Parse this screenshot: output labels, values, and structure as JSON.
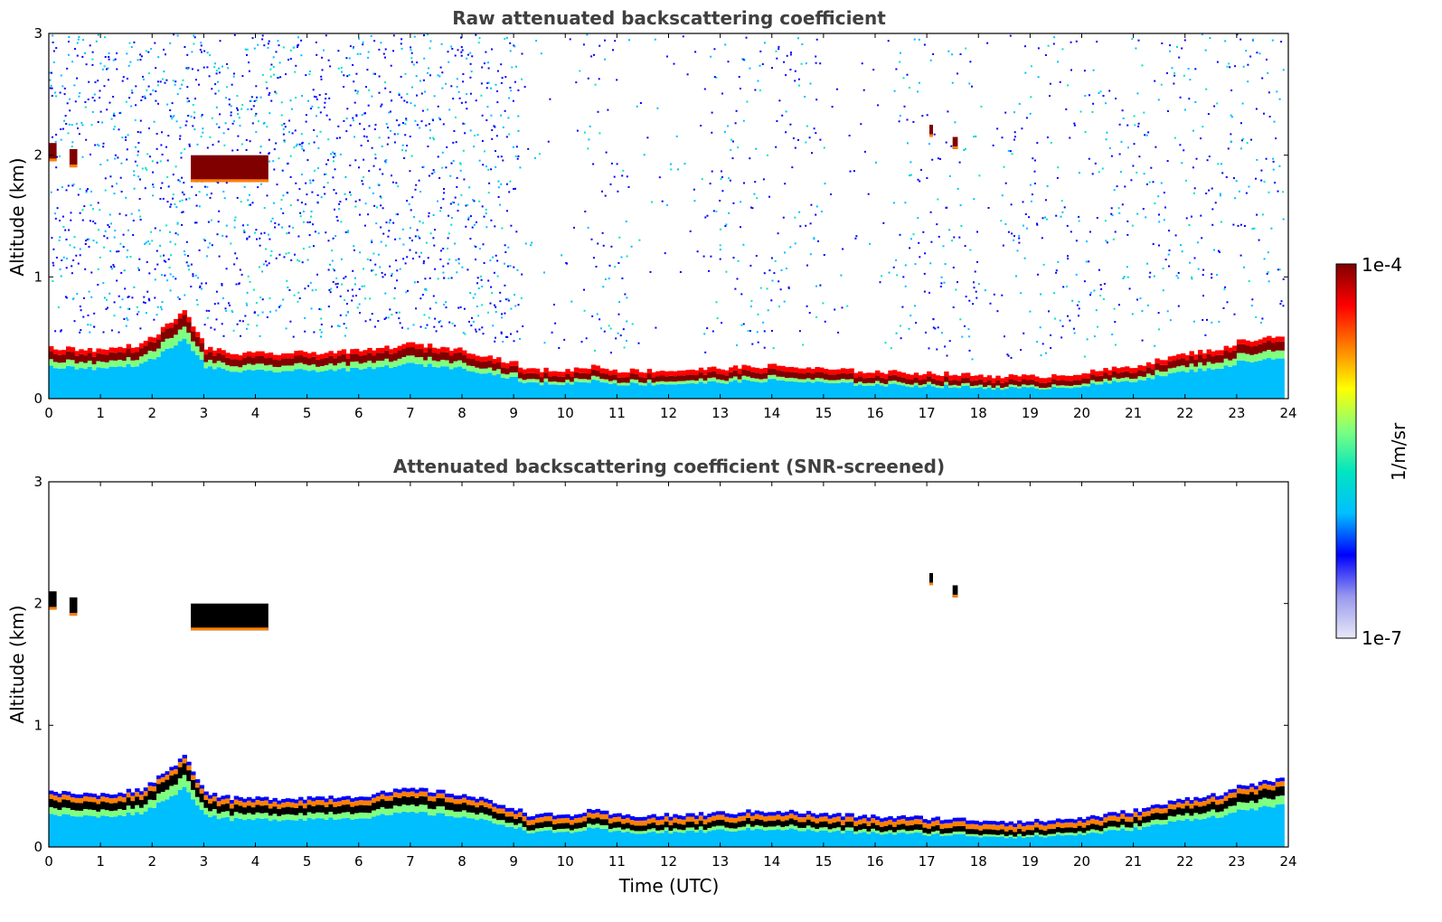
{
  "chart_data": [
    {
      "type": "heatmap",
      "title": "Raw attenuated backscattering coefficient",
      "xlabel": "",
      "ylabel": "Altitude (km)",
      "xlim": [
        0,
        24
      ],
      "ylim": [
        0,
        3
      ],
      "xticks": [
        "0",
        "1",
        "2",
        "3",
        "4",
        "5",
        "6",
        "7",
        "8",
        "9",
        "10",
        "11",
        "12",
        "13",
        "14",
        "15",
        "16",
        "17",
        "18",
        "19",
        "20",
        "21",
        "22",
        "23",
        "24"
      ],
      "yticks": [
        "0",
        "1",
        "2",
        "3"
      ],
      "screened": false
    },
    {
      "type": "heatmap",
      "title": "Attenuated backscattering coefficient (SNR-screened)",
      "xlabel": "Time (UTC)",
      "ylabel": "Altitude (km)",
      "xlim": [
        0,
        24
      ],
      "ylim": [
        0,
        3
      ],
      "xticks": [
        "0",
        "1",
        "2",
        "3",
        "4",
        "5",
        "6",
        "7",
        "8",
        "9",
        "10",
        "11",
        "12",
        "13",
        "14",
        "15",
        "16",
        "17",
        "18",
        "19",
        "20",
        "21",
        "22",
        "23",
        "24"
      ],
      "yticks": [
        "0",
        "1",
        "2",
        "3"
      ],
      "screened": true
    }
  ],
  "colorbar": {
    "label": "1/m/sr",
    "max_label": "1e-4",
    "min_label": "1e-7",
    "scale": "log",
    "colors": [
      "#e8e8f8",
      "#9999ee",
      "#0000ff",
      "#00bfff",
      "#00e5c0",
      "#7fff7f",
      "#ffff00",
      "#ff8000",
      "#ff0000",
      "#800000"
    ]
  },
  "boundary_layer_top_km": {
    "hours": [
      0,
      1,
      1.8,
      2.6,
      3,
      3.5,
      4,
      4.3,
      6,
      7,
      8,
      9,
      9.2,
      10,
      10.5,
      11,
      12,
      13,
      14,
      15,
      16,
      17,
      18,
      19,
      20,
      21,
      22,
      22.8,
      23,
      23.8
    ],
    "heights": [
      0.35,
      0.33,
      0.38,
      0.65,
      0.35,
      0.3,
      0.3,
      0.3,
      0.32,
      0.38,
      0.33,
      0.22,
      0.17,
      0.16,
      0.2,
      0.16,
      0.16,
      0.18,
      0.2,
      0.17,
      0.15,
      0.14,
      0.12,
      0.11,
      0.14,
      0.2,
      0.3,
      0.35,
      0.4,
      0.45
    ]
  },
  "cloud_patches": [
    {
      "t0": 2.75,
      "t1": 4.25,
      "base_km": 1.78,
      "top_km": 2.0
    },
    {
      "t0": 0.0,
      "t1": 0.15,
      "base_km": 1.95,
      "top_km": 2.1
    },
    {
      "t0": 0.4,
      "t1": 0.55,
      "base_km": 1.9,
      "top_km": 2.05
    },
    {
      "t0": 17.05,
      "t1": 17.12,
      "base_km": 2.15,
      "top_km": 2.25
    },
    {
      "t0": 17.5,
      "t1": 17.6,
      "base_km": 2.05,
      "top_km": 2.15
    }
  ]
}
